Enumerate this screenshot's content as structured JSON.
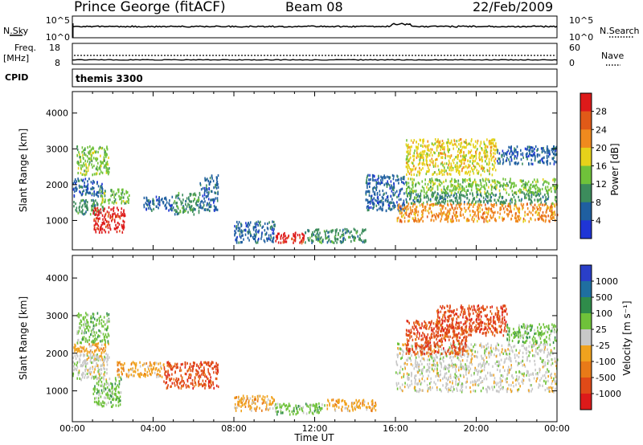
{
  "header": {
    "station": "Prince George (fitACF)",
    "beam": "Beam 08",
    "date": "22/Feb/2009"
  },
  "noise_panel": {
    "left_label": "N.Sky",
    "right_label": "N.Search",
    "left_ticks": [
      "10^5",
      "10^0"
    ],
    "right_ticks": [
      "10^5",
      "10^0"
    ]
  },
  "freq_panel": {
    "left_label_1": "Freq.",
    "left_label_2": "[MHz]",
    "right_label": "Nave",
    "left_ticks": [
      "18",
      "8"
    ],
    "right_ticks": [
      "60",
      "0"
    ]
  },
  "cpid_panel": {
    "label": "CPID",
    "value": "themis 3300"
  },
  "x_axis": {
    "title": "Time UT",
    "ticks": [
      "00:00",
      "04:00",
      "08:00",
      "12:00",
      "16:00",
      "20:00",
      "00:00"
    ]
  },
  "y_axis": {
    "title": "Slant Range [km]",
    "ticks": [
      "1000",
      "2000",
      "3000",
      "4000"
    ]
  },
  "colors": {
    "power": [
      "#1f35d6",
      "#1f5fa0",
      "#3c8c5c",
      "#6fc23a",
      "#e6d21a",
      "#f08a1e",
      "#e05a18",
      "#dd1a1a"
    ],
    "velocity": [
      "#2a3fc8",
      "#1f6fa0",
      "#2f8c4a",
      "#6fc23a",
      "#c8c8c8",
      "#f0a21e",
      "#e87a18",
      "#e04a18",
      "#dd1a1a"
    ]
  },
  "chart_data": [
    {
      "type": "heatmap",
      "title": "",
      "xlabel": "Time UT",
      "ylabel": "Slant Range [km]",
      "xlim": [
        "00:00",
        "24:00"
      ],
      "ylim": [
        180,
        4600
      ],
      "colorbar": {
        "label": "Power [dB]",
        "ticks": [
          "4",
          "8",
          "12",
          "16",
          "20",
          "24",
          "28"
        ]
      },
      "regions": [
        {
          "t": [
            0.0,
            1.5
          ],
          "r": [
            1200,
            1600
          ],
          "level": 12
        },
        {
          "t": [
            0.0,
            1.5
          ],
          "r": [
            1700,
            2200
          ],
          "level": 8
        },
        {
          "t": [
            0.2,
            1.8
          ],
          "r": [
            2300,
            3100
          ],
          "level": 16
        },
        {
          "t": [
            1.0,
            2.6
          ],
          "r": [
            700,
            1400
          ],
          "level": 28
        },
        {
          "t": [
            1.4,
            2.8
          ],
          "r": [
            1500,
            1900
          ],
          "level": 16
        },
        {
          "t": [
            3.5,
            5.0
          ],
          "r": [
            1300,
            1700
          ],
          "level": 8
        },
        {
          "t": [
            5.0,
            6.3
          ],
          "r": [
            1200,
            1800
          ],
          "level": 12
        },
        {
          "t": [
            6.3,
            7.2
          ],
          "r": [
            1300,
            2300
          ],
          "level": 8
        },
        {
          "t": [
            8.0,
            10.0
          ],
          "r": [
            400,
            1000
          ],
          "level": 8
        },
        {
          "t": [
            10.0,
            11.5
          ],
          "r": [
            400,
            700
          ],
          "level": 28
        },
        {
          "t": [
            11.5,
            14.5
          ],
          "r": [
            400,
            800
          ],
          "level": 12
        },
        {
          "t": [
            14.5,
            16.5
          ],
          "r": [
            1300,
            2300
          ],
          "level": 8
        },
        {
          "t": [
            16.0,
            24.0
          ],
          "r": [
            1000,
            1500
          ],
          "level": 24
        },
        {
          "t": [
            16.5,
            24.0
          ],
          "r": [
            1500,
            1800
          ],
          "level": 12
        },
        {
          "t": [
            16.5,
            24.0
          ],
          "r": [
            1800,
            2200
          ],
          "level": 16
        },
        {
          "t": [
            16.5,
            21.0
          ],
          "r": [
            2300,
            3300
          ],
          "level": 20
        },
        {
          "t": [
            21.0,
            24.0
          ],
          "r": [
            2600,
            3100
          ],
          "level": 8
        }
      ]
    },
    {
      "type": "heatmap",
      "title": "",
      "xlabel": "Time UT",
      "ylabel": "Slant Range [km]",
      "xlim": [
        "00:00",
        "24:00"
      ],
      "ylim": [
        180,
        4600
      ],
      "colorbar": {
        "label": "Velocity [m s⁻¹]",
        "ticks": [
          "1000",
          "500",
          "100",
          "25",
          "-25",
          "-100",
          "-500",
          "-1000"
        ]
      },
      "regions": [
        {
          "t": [
            0.0,
            1.8
          ],
          "r": [
            1300,
            2000
          ],
          "level": "-25"
        },
        {
          "t": [
            0.0,
            1.8
          ],
          "r": [
            2000,
            2300
          ],
          "level": "-100"
        },
        {
          "t": [
            0.2,
            1.8
          ],
          "r": [
            2300,
            3100
          ],
          "level": "100"
        },
        {
          "t": [
            1.0,
            2.4
          ],
          "r": [
            600,
            1400
          ],
          "level": "100"
        },
        {
          "t": [
            2.2,
            4.5
          ],
          "r": [
            1400,
            1800
          ],
          "level": "-100"
        },
        {
          "t": [
            4.5,
            7.2
          ],
          "r": [
            1100,
            1800
          ],
          "level": "-500"
        },
        {
          "t": [
            8.0,
            10.0
          ],
          "r": [
            500,
            900
          ],
          "level": "-100"
        },
        {
          "t": [
            10.0,
            12.5
          ],
          "r": [
            400,
            700
          ],
          "level": "100"
        },
        {
          "t": [
            12.5,
            15.0
          ],
          "r": [
            500,
            800
          ],
          "level": "-100"
        },
        {
          "t": [
            16.0,
            24.0
          ],
          "r": [
            1000,
            2300
          ],
          "level": "-25"
        },
        {
          "t": [
            16.5,
            19.5
          ],
          "r": [
            2000,
            2900
          ],
          "level": "-500"
        },
        {
          "t": [
            18.0,
            21.5
          ],
          "r": [
            2500,
            3300
          ],
          "level": "-500"
        },
        {
          "t": [
            21.5,
            24.0
          ],
          "r": [
            2300,
            2800
          ],
          "level": "100"
        }
      ]
    }
  ]
}
